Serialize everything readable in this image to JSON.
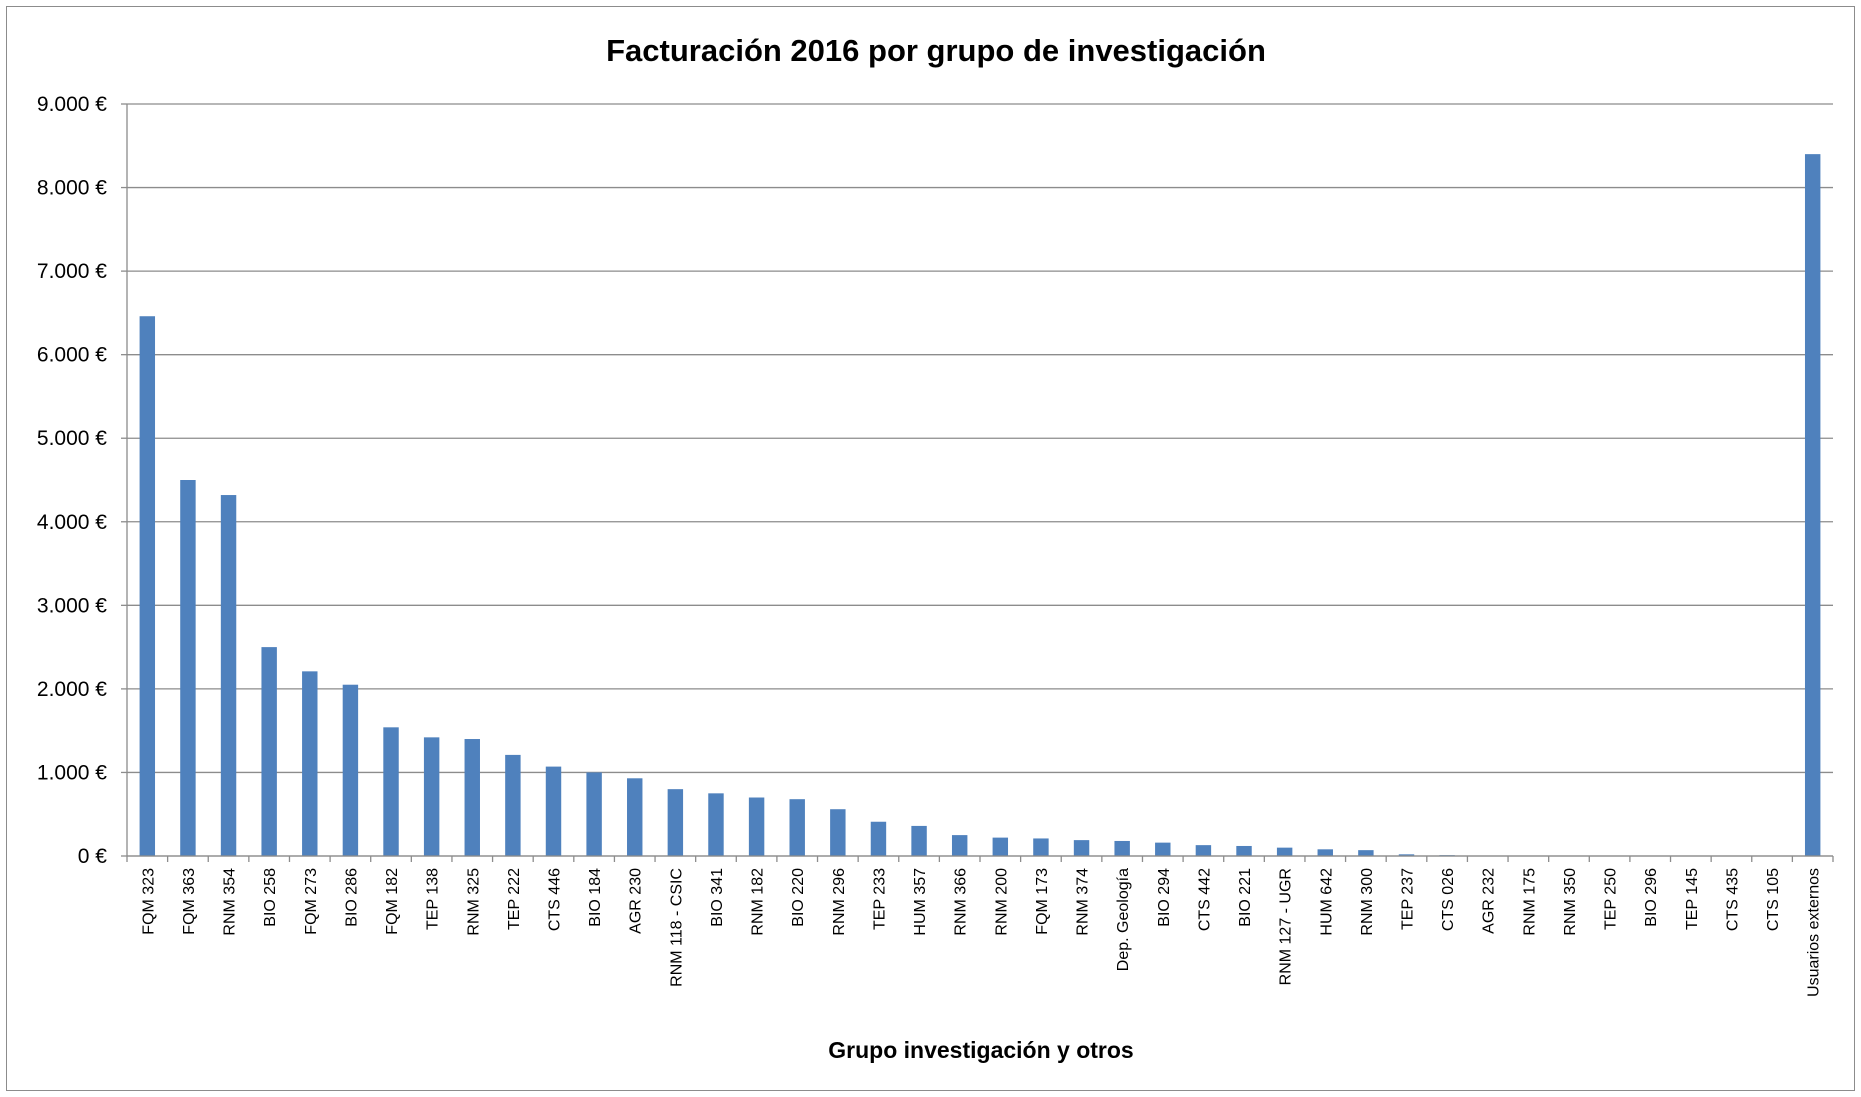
{
  "chart_data": {
    "type": "bar",
    "title": "Facturación 2016 por grupo de investigación",
    "xlabel": "Grupo investigación y otros",
    "ylabel": "",
    "ylim": [
      0,
      9000
    ],
    "yticks": [
      "0 €",
      "1.000 €",
      "2.000 €",
      "3.000 €",
      "4.000 €",
      "5.000 €",
      "6.000 €",
      "7.000 €",
      "8.000 €",
      "9.000 €"
    ],
    "grid": true,
    "legend": "none",
    "bar_color": "#4f81bd",
    "categories": [
      "FQM 323",
      "FQM 363",
      "RNM 354",
      "BIO 258",
      "FQM 273",
      "BIO 286",
      "FQM 182",
      "TEP 138",
      "RNM 325",
      "TEP 222",
      "CTS 446",
      "BIO 184",
      "AGR 230",
      "RNM 118 - CSIC",
      "BIO 341",
      "RNM 182",
      "BIO 220",
      "RNM 296",
      "TEP 233",
      "HUM 357",
      "RNM 366",
      "RNM 200",
      "FQM 173",
      "RNM 374",
      "Dep. Geología",
      "BIO 294",
      "CTS 442",
      "BIO 221",
      "RNM 127 - UGR",
      "HUM 642",
      "RNM 300",
      "TEP 237",
      "CTS 026",
      "AGR 232",
      "RNM 175",
      "RNM 350",
      "TEP 250",
      "BIO 296",
      "TEP 145",
      "CTS 435",
      "CTS 105",
      "Usuarios externos"
    ],
    "values": [
      6460,
      4500,
      4320,
      2500,
      2210,
      2050,
      1540,
      1420,
      1400,
      1210,
      1070,
      1000,
      930,
      800,
      750,
      700,
      680,
      560,
      410,
      360,
      250,
      220,
      210,
      190,
      180,
      160,
      130,
      120,
      100,
      80,
      70,
      20,
      10,
      0,
      0,
      0,
      0,
      0,
      0,
      0,
      0,
      8400
    ]
  }
}
